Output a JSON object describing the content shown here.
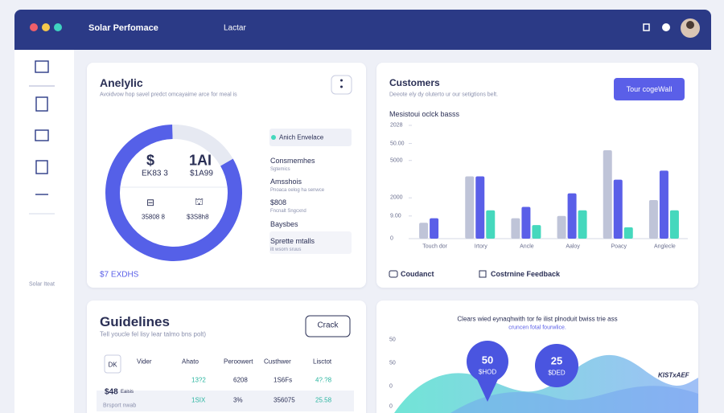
{
  "header": {
    "title": "Solar Perfomace",
    "tab": "Lactar"
  },
  "sidebar": {
    "footer": "Solar Iteat"
  },
  "analytic": {
    "title": "Anelylic",
    "subtitle": "Avoidvow hop savel predct omcayaime arce for meal is",
    "donut": {
      "segments": [
        83,
        17
      ],
      "colors": [
        "#5560e8",
        "#e6e9f2"
      ]
    },
    "inner": [
      {
        "icon": "$",
        "value": "EK83 3"
      },
      {
        "icon": "1AI",
        "value": "$1A99"
      },
      {
        "icon": "⊟",
        "value": "35808 8"
      },
      {
        "icon": "⛫",
        "value": "$3S8h8"
      }
    ],
    "legend": {
      "active": "Anich Envelace",
      "items": [
        {
          "title": "Consmemhes",
          "sub": "Sgtemics"
        },
        {
          "title": "Amsshois",
          "sub": "Pnoaca oelog ha senwce"
        },
        {
          "title": "$808",
          "sub": "Fncnalt Sngcxnd"
        },
        {
          "title": "Baysbes",
          "sub": ""
        },
        {
          "title": "Sprette mtalls",
          "sub": "ilt wsorn sruus"
        }
      ]
    },
    "footer": "$7 EXDHS"
  },
  "customers": {
    "title": "Customers",
    "subtitle": "Deeote ely dy oluterto ur our setigtions belt.",
    "button": "Tour cogeWall",
    "chart_title": "Mesistoui oclck basss",
    "chart_data": {
      "type": "bar",
      "categories": [
        "Touch dor",
        "Irtory",
        "Ancle",
        "Aaloy",
        "Poacy",
        "Anglecle"
      ],
      "ylim": [
        0,
        100
      ],
      "yticks": [
        {
          "value": 100,
          "label": "2028"
        },
        {
          "value": 84,
          "label": "50.00"
        },
        {
          "value": 69,
          "label": "5000"
        },
        {
          "value": 36,
          "label": "2000"
        },
        {
          "value": 20,
          "label": "9.00"
        },
        0
      ],
      "series": [
        {
          "color": "#bfc4d8",
          "values": [
            14,
            55,
            18,
            20,
            78,
            34
          ]
        },
        {
          "color": "#5a5fe8",
          "values": [
            18,
            55,
            28,
            40,
            52,
            60
          ]
        },
        {
          "color": "#45d8bd",
          "values": [
            null,
            25,
            12,
            25,
            10,
            25
          ]
        }
      ]
    },
    "links": [
      "Coudanct",
      "Costrnine Feedback"
    ]
  },
  "guidelines": {
    "title": "Guidelines",
    "subtitle": "Tell youcle fel lisy lear talmo bns polt)",
    "button": "Crack",
    "table": {
      "icon": "DK",
      "header": [
        "Vider",
        "Ahato",
        "Peroowert",
        "Custhwer",
        "Lisctot"
      ],
      "rows": [
        [
          "",
          "",
          "13?2",
          "6208",
          "1S6Fs",
          "4?.?8"
        ],
        [
          "$48",
          "Eaisis",
          "1SIX",
          "3%",
          "356075",
          "25.58"
        ]
      ],
      "footer": "Brsport nwab"
    }
  },
  "trend": {
    "title": "Clears wied eynaqhwith tor fe ilist plnoduit bwiss trie ass",
    "subtitle": "cruncen fotal fourwlice.",
    "axis": [
      "50",
      "50",
      "0",
      "0"
    ],
    "bubbles": [
      {
        "value": 50,
        "label": "$HOD"
      },
      {
        "value": 25,
        "label": "$DED"
      }
    ],
    "tag": "KISTxAEF"
  }
}
